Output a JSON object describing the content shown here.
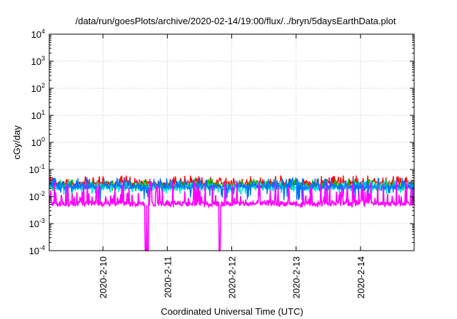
{
  "chart_data": {
    "type": "line",
    "title": "/data/run/goesPlots/archive/2020-02-14/19:00/flux/../bryn/5daysEarthData.plot",
    "xlabel": "Coordinated Universal Time (UTC)",
    "ylabel": "cGy/day",
    "y_scale": "log",
    "ylim": [
      0.0001,
      10000
    ],
    "xlim": [
      "2020-02-09 04:00",
      "2020-02-14 20:00"
    ],
    "x_ticks": [
      "2020-2-10",
      "2020-2-11",
      "2020-2-12",
      "2020-2-13",
      "2020-2-14"
    ],
    "y_ticks": [
      {
        "base": "10",
        "exp": "-4"
      },
      {
        "base": "10",
        "exp": "-3"
      },
      {
        "base": "10",
        "exp": "-2"
      },
      {
        "base": "10",
        "exp": "-1"
      },
      {
        "base": "10",
        "exp": "0"
      },
      {
        "base": "10",
        "exp": "1"
      },
      {
        "base": "10",
        "exp": "2"
      },
      {
        "base": "10",
        "exp": "3"
      },
      {
        "base": "10",
        "exp": "4"
      }
    ],
    "grid": true,
    "legend": "none",
    "series": [
      {
        "color": "#ff0000",
        "baseline": 0.03,
        "spike_max": 0.06,
        "dip_min": 0.022
      },
      {
        "color": "#00c800",
        "baseline": 0.025,
        "spike_max": 0.045,
        "dip_min": 0.015
      },
      {
        "color": "#00e0e0",
        "baseline": 0.021,
        "spike_max": 0.04,
        "dip_min": 0.012
      },
      {
        "color": "#0070ff",
        "baseline": 0.023,
        "spike_max": 0.05,
        "dip_min": 0.007
      },
      {
        "color": "#ff00ff",
        "baseline": 0.0055,
        "spike_max": 0.04,
        "dip_min": 0.004,
        "dropouts": [
          "2020-02-10 16:00",
          "2020-02-10 16:45",
          "2020-02-11 19:30"
        ]
      }
    ]
  }
}
